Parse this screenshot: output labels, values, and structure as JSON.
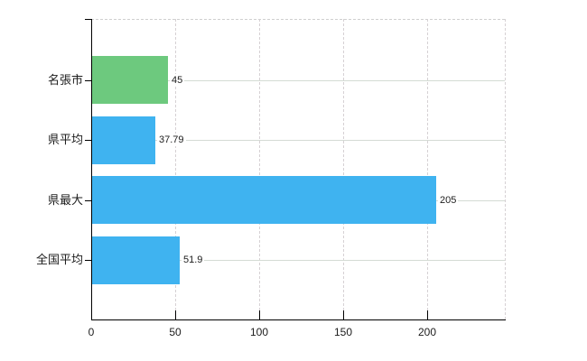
{
  "chart_data": {
    "type": "bar",
    "orientation": "horizontal",
    "title": "",
    "xlabel": "",
    "ylabel": "",
    "categories": [
      "名張市",
      "県平均",
      "県最大",
      "全国平均"
    ],
    "values": [
      45,
      37.79,
      205,
      51.9
    ],
    "value_labels": [
      "45",
      "37.79",
      "205",
      "51.9"
    ],
    "series": [
      {
        "name": "values",
        "values": [
          45,
          37.79,
          205,
          51.9
        ]
      }
    ],
    "bar_colors": [
      "#6dc97e",
      "#3fb3f0",
      "#3fb3f0",
      "#3fb3f0"
    ],
    "xlim": [
      0,
      246
    ],
    "x_ticks": [
      0,
      50,
      100,
      150,
      200
    ],
    "x_tick_labels": [
      "0",
      "50",
      "100",
      "150",
      "200"
    ],
    "grid": "on",
    "legend": "none"
  },
  "colors": {
    "bar_green": "#6dc97e",
    "bar_blue": "#3fb3f0",
    "axis": "#000000",
    "grid_horizontal": "#d4dbd4",
    "grid_vertical": "#d6d1d4",
    "plot_top_border": "#d0d0d0",
    "text": "#1c1c1c",
    "background": "#ffffff"
  }
}
